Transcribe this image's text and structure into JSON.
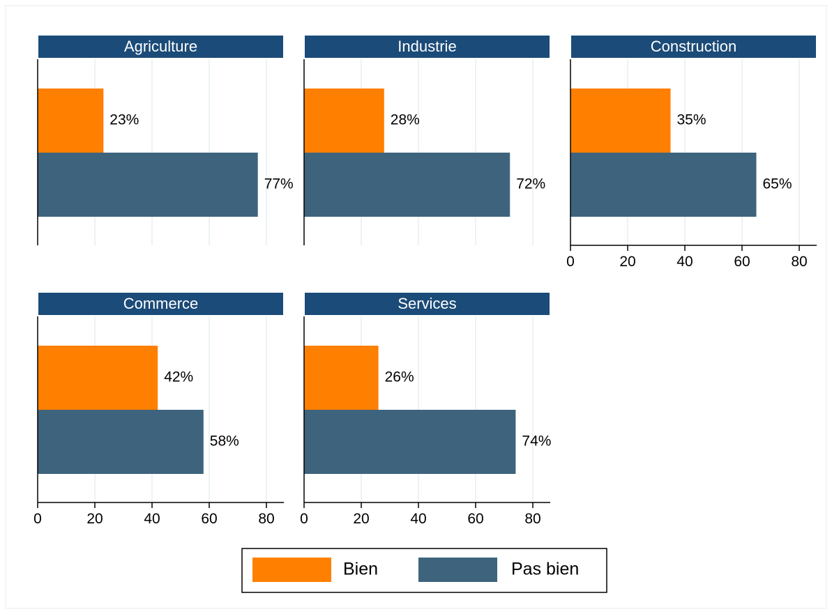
{
  "chart_data": {
    "type": "bar",
    "orientation": "horizontal",
    "layout": "small-multiples",
    "xlim": [
      0,
      86
    ],
    "xticks": [
      0,
      20,
      40,
      60,
      80
    ],
    "grid": true,
    "legend_position": "bottom",
    "series": [
      {
        "name": "Bien",
        "color": "#ff7f00"
      },
      {
        "name": "Pas bien",
        "color": "#3e647d"
      }
    ],
    "panels": [
      {
        "title": "Agriculture",
        "values": [
          23,
          77
        ],
        "labels": [
          "23%",
          "77%"
        ]
      },
      {
        "title": "Industrie",
        "values": [
          28,
          72
        ],
        "labels": [
          "28%",
          "72%"
        ]
      },
      {
        "title": "Construction",
        "values": [
          35,
          65
        ],
        "labels": [
          "35%",
          "65%"
        ]
      },
      {
        "title": "Commerce",
        "values": [
          42,
          58
        ],
        "labels": [
          "42%",
          "58%"
        ]
      },
      {
        "title": "Services",
        "values": [
          26,
          74
        ],
        "labels": [
          "26%",
          "74%"
        ]
      }
    ]
  },
  "colors": {
    "header_bg": "#1b4b78",
    "grid": "#e6edf2",
    "frame": "#ebebeb"
  }
}
